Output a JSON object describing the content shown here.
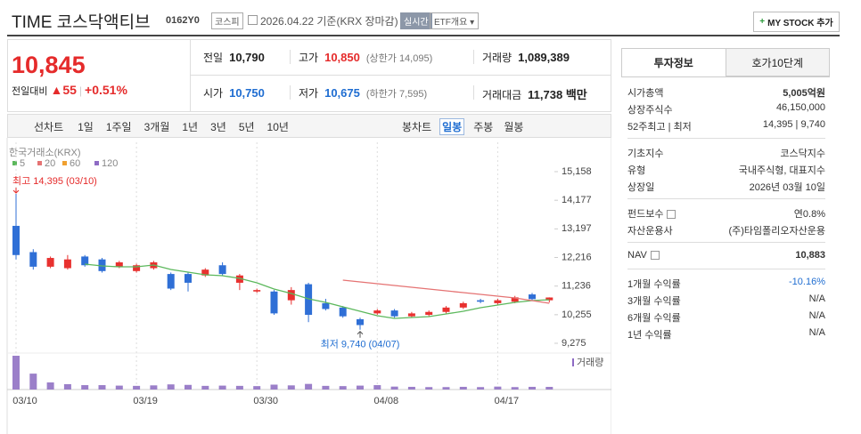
{
  "header": {
    "title": "TIME 코스닥액티브",
    "code": "0162Y0",
    "market": "코스피",
    "date": "2026.04.22 기준(KRX 장마감)",
    "realtime": "실시간",
    "overview": "ETF개요",
    "button": "MY STOCK 추가"
  },
  "quote": {
    "price": "10,845",
    "change_label": "전일대비",
    "change": "55",
    "change_pct": "+0.51%",
    "cells": [
      [
        {
          "label": "전일",
          "value": "10,790",
          "color": "#222"
        },
        {
          "label": "고가",
          "value": "10,850",
          "note": "(상한가 14,095)",
          "color": "#e52b2b"
        },
        {
          "label": "거래량",
          "value": "1,089,389",
          "color": "#222"
        }
      ],
      [
        {
          "label": "시가",
          "value": "10,750",
          "color": "#1f6dd1"
        },
        {
          "label": "저가",
          "value": "10,675",
          "note": "(하한가 7,595)",
          "color": "#1f6dd1"
        },
        {
          "label": "거래대금",
          "value": "11,738 백만",
          "color": "#222"
        }
      ]
    ]
  },
  "tabs": {
    "line": [
      "선차트",
      "1일",
      "1주일",
      "3개월",
      "1년",
      "3년",
      "5년",
      "10년"
    ],
    "candle": [
      "봉차트",
      "일봉",
      "주봉",
      "월봉"
    ],
    "active": "일봉"
  },
  "info": {
    "tabs": [
      "투자정보",
      "호가10단계"
    ],
    "groups": [
      [
        {
          "label": "시가총액",
          "value": "5,005억원",
          "bold": true
        },
        {
          "label": "상장주식수",
          "value": "46,150,000"
        },
        {
          "label": "52주최고 | 최저",
          "value": "14,395 | 9,740"
        }
      ],
      [
        {
          "label": "기초지수",
          "value": "코스닥지수"
        },
        {
          "label": "유형",
          "value": "국내주식형, 대표지수"
        },
        {
          "label": "상장일",
          "value": "2026년 03월 10일"
        }
      ],
      [
        {
          "label": "펀드보수",
          "value": "연0.8%",
          "icon": true
        },
        {
          "label": "자산운용사",
          "value": "(주)타임폴리오자산운용"
        }
      ],
      [
        {
          "label": "NAV",
          "value": "10,883",
          "icon": true,
          "bold": true
        }
      ],
      [
        {
          "label": "1개월 수익률",
          "value": "-10.16%",
          "color": "#1f6dd1"
        },
        {
          "label": "3개월 수익률",
          "value": "N/A"
        },
        {
          "label": "6개월 수익률",
          "value": "N/A"
        },
        {
          "label": "1년 수익률",
          "value": "N/A"
        }
      ]
    ]
  },
  "chart_data": {
    "type": "candlestick",
    "source": "한국거래소(KRX)",
    "volume_label": "거래량",
    "categories": [
      "03/10",
      null,
      null,
      null,
      null,
      null,
      null,
      "03/19",
      null,
      null,
      null,
      null,
      null,
      null,
      "03/30",
      null,
      null,
      null,
      null,
      null,
      null,
      "04/08",
      null,
      null,
      null,
      null,
      null,
      null,
      "04/17",
      null,
      null,
      null
    ],
    "open": [
      13300,
      12400,
      11900,
      11850,
      12250,
      12150,
      11900,
      11750,
      11850,
      11650,
      11650,
      11600,
      11950,
      11350,
      11050,
      11050,
      10750,
      11300,
      10650,
      10500,
      10100,
      10300,
      10400,
      10200,
      10250,
      10350,
      10500,
      10750,
      10650,
      10700,
      10950,
      10750
    ],
    "high": [
      14395,
      12500,
      12250,
      12300,
      12300,
      12200,
      12100,
      12000,
      12100,
      11700,
      11700,
      11850,
      12050,
      11650,
      11150,
      11100,
      11200,
      11350,
      10800,
      10550,
      10150,
      10450,
      10450,
      10350,
      10400,
      10550,
      10700,
      10800,
      10800,
      10900,
      11000,
      10850
    ],
    "low": [
      12150,
      11800,
      11850,
      11800,
      11900,
      11700,
      11850,
      11700,
      11800,
      11100,
      11050,
      11550,
      11600,
      11100,
      11000,
      10250,
      10600,
      10000,
      10400,
      10150,
      9740,
      10250,
      10150,
      10150,
      10200,
      10300,
      10450,
      10650,
      10600,
      10650,
      10750,
      10675
    ],
    "close": [
      12300,
      11900,
      12200,
      12150,
      11950,
      11750,
      12050,
      11950,
      12050,
      11150,
      11350,
      11800,
      11650,
      11600,
      11100,
      10300,
      11100,
      10250,
      10450,
      10200,
      9900,
      10400,
      10200,
      10300,
      10350,
      10500,
      10650,
      10700,
      10750,
      10850,
      10790,
      10845
    ],
    "volume": [
      13800000,
      6500000,
      2900000,
      2200000,
      1800000,
      1800000,
      1600000,
      1500000,
      1700000,
      2100000,
      1900000,
      1500000,
      1600000,
      1500000,
      1400000,
      2000000,
      1700000,
      2300000,
      1500000,
      1400000,
      1600000,
      1800000,
      1200000,
      1100000,
      1000000,
      1000000,
      1100000,
      1000000,
      1200000,
      1000000,
      1100000,
      1089389
    ],
    "volume_color": "#9b7fc9",
    "up_color": "#e8312f",
    "down_color": "#2f6fd6",
    "series": [
      {
        "name": "5",
        "color": "#5cb85c",
        "values": [
          null,
          null,
          null,
          null,
          11988,
          11927,
          11896,
          11896,
          11957,
          11805,
          11713,
          11622,
          11591,
          11500,
          11348,
          11134,
          10982,
          10799,
          10677,
          10525,
          10372,
          10220,
          10128,
          10159,
          10189,
          10281,
          10372,
          10494,
          10586,
          10677,
          10738,
          10768
        ]
      },
      {
        "name": "20",
        "color": "#e57373",
        "values": [
          null,
          null,
          null,
          null,
          null,
          null,
          null,
          null,
          null,
          null,
          null,
          null,
          null,
          null,
          null,
          null,
          null,
          null,
          null,
          11439,
          11378,
          11317,
          11256,
          11195,
          11134,
          11073,
          11012,
          10951,
          10890,
          10829,
          10738,
          10647
        ]
      },
      {
        "name": "60",
        "color": "#f0a030",
        "values": [
          null,
          null,
          null,
          null,
          null,
          null,
          null,
          null,
          null,
          null,
          null,
          null,
          null,
          null,
          null,
          null,
          null,
          null,
          null,
          null,
          null,
          null,
          null,
          null,
          null,
          null,
          null,
          null,
          null,
          null,
          null,
          null
        ]
      },
      {
        "name": "120",
        "color": "#8e6bc4",
        "values": [
          null,
          null,
          null,
          null,
          null,
          null,
          null,
          null,
          null,
          null,
          null,
          null,
          null,
          null,
          null,
          null,
          null,
          null,
          null,
          null,
          null,
          null,
          null,
          null,
          null,
          null,
          null,
          null,
          null,
          null,
          null,
          null
        ]
      }
    ],
    "annotations": [
      {
        "text": "최고 14,395 (03/10)",
        "color": "#e52b2b"
      },
      {
        "text": "최저 9,740 (04/07)",
        "color": "#1f6dd1"
      }
    ],
    "ylim": [
      9062,
      15402
    ],
    "yticks": [
      {
        "value": 15158,
        "label": "15,158"
      },
      {
        "value": 14177,
        "label": "14,177"
      },
      {
        "value": 13197,
        "label": "13,197"
      },
      {
        "value": 12216,
        "label": "12,216"
      },
      {
        "value": 11236,
        "label": "11,236"
      },
      {
        "value": 10255,
        "label": "10,255"
      },
      {
        "value": 9275,
        "label": "9,275"
      }
    ],
    "grid": "x"
  }
}
